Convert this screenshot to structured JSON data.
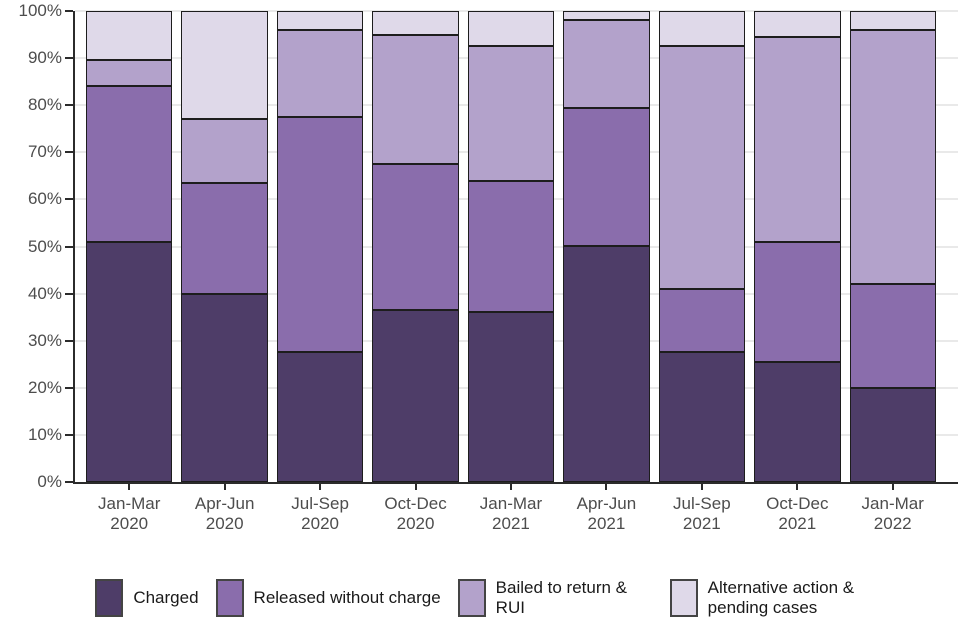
{
  "chart_data": {
    "type": "bar",
    "variant": "stacked-100-percent",
    "title": "",
    "xlabel": "",
    "ylabel": "",
    "ylim": [
      0,
      100
    ],
    "grid": true,
    "legend_position": "bottom",
    "categories": [
      "Jan-Mar 2020",
      "Apr-Jun 2020",
      "Jul-Sep 2020",
      "Oct-Dec 2020",
      "Jan-Mar 2021",
      "Apr-Jun 2021",
      "Jul-Sep 2021",
      "Oct-Dec 2021",
      "Jan-Mar 2022"
    ],
    "y_ticks": [
      "0%",
      "10%",
      "20%",
      "30%",
      "40%",
      "50%",
      "60%",
      "70%",
      "80%",
      "90%",
      "100%"
    ],
    "series": [
      {
        "name": "Charged",
        "color": "#4e3d68",
        "values": [
          51,
          40,
          27.5,
          36.5,
          36,
          50,
          27.5,
          25.5,
          20
        ]
      },
      {
        "name": "Released without charge",
        "color": "#8a6dac",
        "values": [
          33,
          23.5,
          50,
          31,
          28,
          29.5,
          13.5,
          25.5,
          22
        ]
      },
      {
        "name": "Bailed to return & RUI",
        "color": "#b3a2cb",
        "values": [
          5.5,
          13.5,
          18.5,
          27.5,
          28.5,
          18.5,
          51.5,
          43.5,
          54
        ]
      },
      {
        "name": "Alternative action & pending cases",
        "color": "#dfd9e9",
        "values": [
          10.5,
          23,
          4,
          5,
          7.5,
          2,
          7.5,
          5.5,
          4
        ]
      }
    ]
  },
  "colors": {
    "background": "#ffffff",
    "axis": "#2b2b2b",
    "grid": "#e9e9e9",
    "tick_text": "#4d4d4d",
    "legend_text": "#1a1a1a",
    "segment_border": "#1d1d1d"
  }
}
